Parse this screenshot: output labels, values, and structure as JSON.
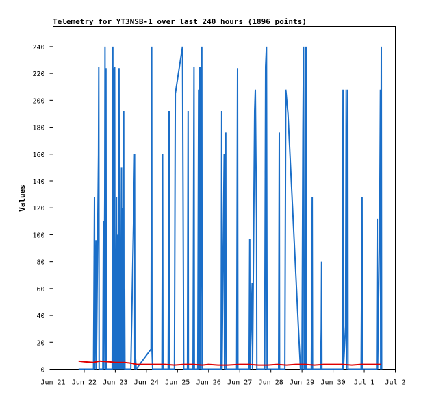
{
  "chart_data": {
    "type": "line",
    "title": "Telemetry for YT3NSB-1 over last 240 hours (1896 points)",
    "xlabel": "",
    "ylabel": "Values",
    "x_tick_labels": [
      "Jun 21",
      "Jun 22",
      "Jun 23",
      "Jun 24",
      "Jun 25",
      "Jun 26",
      "Jun 27",
      "Jun 28",
      "Jun 29",
      "Jun 30",
      "Jul 1",
      "Jul 2"
    ],
    "xlim": [
      0,
      11
    ],
    "ylim": [
      0,
      255
    ],
    "y_ticks": [
      0,
      20,
      40,
      60,
      80,
      100,
      120,
      140,
      160,
      180,
      200,
      220,
      240
    ],
    "grid": false,
    "series": [
      {
        "color": "#1a6ec8",
        "points": [
          [
            0.82,
            0
          ],
          [
            1.3,
            0
          ],
          [
            1.33,
            128
          ],
          [
            1.34,
            0
          ],
          [
            1.38,
            96
          ],
          [
            1.39,
            0
          ],
          [
            1.46,
            160
          ],
          [
            1.47,
            225
          ],
          [
            1.48,
            0
          ],
          [
            1.6,
            0
          ],
          [
            1.62,
            110
          ],
          [
            1.63,
            0
          ],
          [
            1.66,
            128
          ],
          [
            1.67,
            240
          ],
          [
            1.68,
            0
          ],
          [
            1.7,
            224
          ],
          [
            1.71,
            0
          ],
          [
            1.9,
            0
          ],
          [
            1.92,
            240
          ],
          [
            1.93,
            0
          ],
          [
            1.95,
            224
          ],
          [
            1.96,
            0
          ],
          [
            1.98,
            225
          ],
          [
            1.99,
            0
          ],
          [
            2.0,
            80
          ],
          [
            2.01,
            0
          ],
          [
            2.04,
            128
          ],
          [
            2.05,
            0
          ],
          [
            2.08,
            100
          ],
          [
            2.09,
            0
          ],
          [
            2.12,
            224
          ],
          [
            2.13,
            0
          ],
          [
            2.16,
            60
          ],
          [
            2.17,
            0
          ],
          [
            2.2,
            150
          ],
          [
            2.21,
            0
          ],
          [
            2.24,
            120
          ],
          [
            2.25,
            0
          ],
          [
            2.27,
            192
          ],
          [
            2.28,
            0
          ],
          [
            2.3,
            60
          ],
          [
            2.31,
            0
          ],
          [
            2.35,
            0
          ],
          [
            2.5,
            0
          ],
          [
            2.6,
            128
          ],
          [
            2.62,
            160
          ],
          [
            2.63,
            0
          ],
          [
            2.65,
            8
          ],
          [
            2.67,
            0
          ],
          [
            3.15,
            15
          ],
          [
            3.17,
            240
          ],
          [
            3.18,
            15
          ],
          [
            3.2,
            0
          ],
          [
            3.25,
            0
          ],
          [
            3.5,
            0
          ],
          [
            3.52,
            160
          ],
          [
            3.53,
            0
          ],
          [
            3.7,
            0
          ],
          [
            3.73,
            192
          ],
          [
            3.74,
            0
          ],
          [
            3.9,
            0
          ],
          [
            3.93,
            205
          ],
          [
            4.16,
            240
          ],
          [
            4.2,
            0
          ],
          [
            4.32,
            0
          ],
          [
            4.34,
            192
          ],
          [
            4.35,
            0
          ],
          [
            4.5,
            0
          ],
          [
            4.53,
            225
          ],
          [
            4.54,
            0
          ],
          [
            4.65,
            0
          ],
          [
            4.68,
            208
          ],
          [
            4.69,
            0
          ],
          [
            4.72,
            225
          ],
          [
            4.73,
            0
          ],
          [
            4.78,
            240
          ],
          [
            4.79,
            0
          ],
          [
            5.0,
            0
          ],
          [
            5.4,
            0
          ],
          [
            5.42,
            192
          ],
          [
            5.43,
            0
          ],
          [
            5.5,
            160
          ],
          [
            5.51,
            0
          ],
          [
            5.55,
            176
          ],
          [
            5.56,
            0
          ],
          [
            5.9,
            0
          ],
          [
            5.93,
            224
          ],
          [
            5.94,
            0
          ],
          [
            6.3,
            0
          ],
          [
            6.32,
            97
          ],
          [
            6.33,
            0
          ],
          [
            6.4,
            64
          ],
          [
            6.41,
            0
          ],
          [
            6.48,
            192
          ],
          [
            6.5,
            208
          ],
          [
            6.52,
            155
          ],
          [
            6.54,
            112
          ],
          [
            6.55,
            0
          ],
          [
            6.8,
            0
          ],
          [
            6.83,
            225
          ],
          [
            6.86,
            240
          ],
          [
            6.88,
            0
          ],
          [
            7.25,
            0
          ],
          [
            7.27,
            176
          ],
          [
            7.28,
            0
          ],
          [
            7.45,
            0
          ],
          [
            7.48,
            208
          ],
          [
            7.55,
            190
          ],
          [
            7.95,
            0
          ],
          [
            8.0,
            0
          ],
          [
            8.03,
            176
          ],
          [
            8.05,
            240
          ],
          [
            8.07,
            0
          ],
          [
            8.1,
            0
          ],
          [
            8.13,
            240
          ],
          [
            8.14,
            0
          ],
          [
            8.3,
            0
          ],
          [
            8.33,
            128
          ],
          [
            8.34,
            0
          ],
          [
            8.6,
            0
          ],
          [
            8.62,
            30
          ],
          [
            8.63,
            80
          ],
          [
            8.64,
            0
          ],
          [
            9.3,
            0
          ],
          [
            9.32,
            208
          ],
          [
            9.33,
            0
          ],
          [
            9.4,
            32
          ],
          [
            9.42,
            208
          ],
          [
            9.43,
            0
          ],
          [
            9.47,
            208
          ],
          [
            9.48,
            0
          ],
          [
            9.9,
            0
          ],
          [
            9.93,
            128
          ],
          [
            9.94,
            0
          ],
          [
            10.4,
            0
          ],
          [
            10.42,
            112
          ],
          [
            10.43,
            0
          ],
          [
            10.5,
            120
          ],
          [
            10.52,
            208
          ],
          [
            10.53,
            0
          ],
          [
            10.55,
            240
          ],
          [
            10.56,
            0
          ]
        ]
      },
      {
        "color": "#e00000",
        "points": [
          [
            0.82,
            6
          ],
          [
            1.0,
            5.5
          ],
          [
            1.3,
            5
          ],
          [
            1.5,
            6
          ],
          [
            1.8,
            5.5
          ],
          [
            2.0,
            5
          ],
          [
            2.3,
            5
          ],
          [
            2.5,
            4.5
          ],
          [
            2.7,
            3.5
          ],
          [
            3.0,
            3.5
          ],
          [
            3.3,
            3.5
          ],
          [
            3.6,
            3.5
          ],
          [
            3.9,
            3
          ],
          [
            4.2,
            3.5
          ],
          [
            4.5,
            3.5
          ],
          [
            4.8,
            3
          ],
          [
            5.0,
            3.5
          ],
          [
            5.3,
            3
          ],
          [
            5.6,
            3
          ],
          [
            6.0,
            3.5
          ],
          [
            6.3,
            3.5
          ],
          [
            6.6,
            3
          ],
          [
            6.9,
            3
          ],
          [
            7.2,
            3.5
          ],
          [
            7.5,
            3
          ],
          [
            7.8,
            3.5
          ],
          [
            8.1,
            3.5
          ],
          [
            8.4,
            3
          ],
          [
            8.7,
            3.5
          ],
          [
            9.0,
            3.5
          ],
          [
            9.3,
            3.5
          ],
          [
            9.6,
            3
          ],
          [
            9.9,
            3.5
          ],
          [
            10.2,
            3.5
          ],
          [
            10.55,
            3.5
          ]
        ]
      }
    ]
  }
}
